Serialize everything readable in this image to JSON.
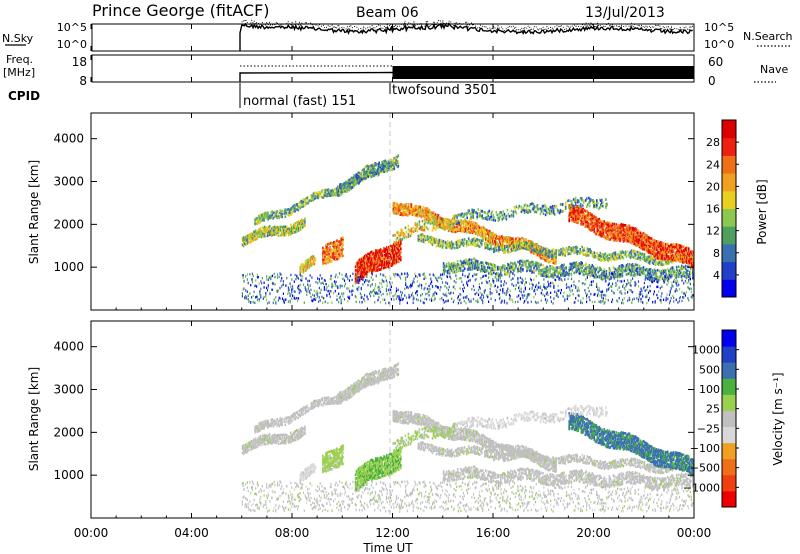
{
  "header": {
    "station": "Prince George (fitACF)",
    "beam": "Beam 06",
    "date": "13/Jul/2013"
  },
  "noise_panel": {
    "left_label": "N.Sky",
    "left_ticks": [
      "10^5",
      "10^0"
    ],
    "right_ticks": [
      "10^5",
      "10^0"
    ],
    "right_label": "N.Search",
    "legend_style": "dotted"
  },
  "freq_panel": {
    "left_label_1": "Freq.",
    "left_label_2": "[MHz]",
    "left_ticks": [
      "18",
      "8"
    ],
    "right_ticks": [
      "60",
      "0"
    ],
    "right_label": "Nave",
    "legend_style": "dotted"
  },
  "cpid": {
    "label": "CPID",
    "segments": [
      {
        "label": "normal (fast) 151",
        "start_ut": "06:00"
      },
      {
        "label": "twofsound 3501",
        "start_ut": "12:00"
      }
    ]
  },
  "chart_data": [
    {
      "type": "heatmap",
      "name": "Power",
      "x_axis": {
        "range": [
          "00:00",
          "00:00"
        ],
        "ticks": [
          "00:00",
          "04:00",
          "08:00",
          "12:00",
          "16:00",
          "20:00",
          "00:00"
        ],
        "unit": "hours UT"
      },
      "ylabel": "Slant Range [km]",
      "yticks": [
        1000,
        2000,
        3000,
        4000
      ],
      "ylim": [
        0,
        4600
      ],
      "colorbar": {
        "label": "Power [dB]",
        "ticks": [
          "28",
          "24",
          "20",
          "16",
          "12",
          "8",
          "4"
        ],
        "range": [
          0,
          30
        ],
        "colors": [
          "#0000ee",
          "#2040c8",
          "#3a6fb0",
          "#4fa060",
          "#8cc850",
          "#e8d020",
          "#f0a020",
          "#f07018",
          "#ee2010",
          "#dd0000"
        ]
      },
      "data_start_ut": 6.0,
      "data_end_ut": 24.0,
      "grid": false
    },
    {
      "type": "heatmap",
      "name": "Velocity",
      "x_axis": {
        "range": [
          "00:00",
          "00:00"
        ],
        "ticks": [
          "00:00",
          "04:00",
          "08:00",
          "12:00",
          "16:00",
          "20:00",
          "00:00"
        ],
        "unit": "hours UT"
      },
      "xlabel": "Time UT",
      "ylabel": "Slant Range [km]",
      "yticks": [
        1000,
        2000,
        3000,
        4000
      ],
      "ylim": [
        0,
        4600
      ],
      "colorbar": {
        "label": "Velocity [m s⁻¹]",
        "ticks": [
          "1000",
          "500",
          "100",
          "25",
          "−25",
          "−100",
          "−500",
          "−1000"
        ],
        "range": [
          -1200,
          1200
        ],
        "colors": [
          "#ee0000",
          "#f04010",
          "#f07018",
          "#f0a020",
          "#d8d8d8",
          "#c0c0c0",
          "#9ad050",
          "#4ab040",
          "#3a70b0",
          "#2040c8",
          "#0000ee"
        ]
      },
      "data_start_ut": 6.0,
      "data_end_ut": 24.0,
      "grid": false
    }
  ]
}
